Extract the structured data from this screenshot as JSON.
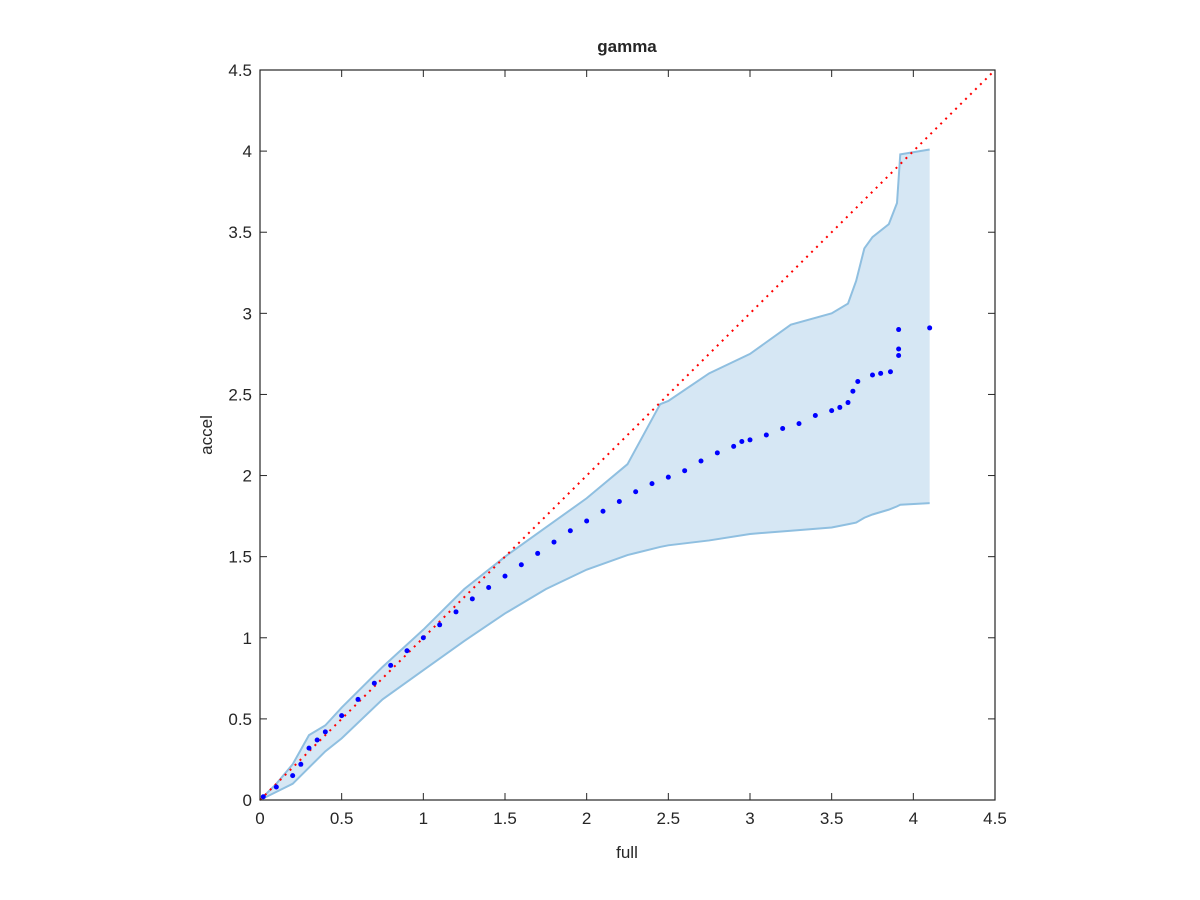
{
  "chart_data": {
    "type": "scatter",
    "title": "gamma",
    "xlabel": "full",
    "ylabel": "accel",
    "xlim": [
      0,
      4.5
    ],
    "ylim": [
      0,
      4.5
    ],
    "xticks": [
      0,
      0.5,
      1,
      1.5,
      2,
      2.5,
      3,
      3.5,
      4,
      4.5
    ],
    "yticks": [
      0,
      0.5,
      1,
      1.5,
      2,
      2.5,
      3,
      3.5,
      4,
      4.5
    ],
    "points": {
      "color": "#0000ff",
      "x": [
        0.02,
        0.1,
        0.2,
        0.25,
        0.3,
        0.35,
        0.4,
        0.5,
        0.6,
        0.7,
        0.8,
        0.9,
        1.0,
        1.1,
        1.2,
        1.3,
        1.4,
        1.5,
        1.6,
        1.7,
        1.8,
        1.9,
        2.0,
        2.1,
        2.2,
        2.3,
        2.4,
        2.5,
        2.6,
        2.7,
        2.8,
        2.9,
        2.95,
        3.0,
        3.1,
        3.2,
        3.3,
        3.4,
        3.5,
        3.55,
        3.6,
        3.63,
        3.66,
        3.75,
        3.8,
        3.86,
        3.91,
        3.91,
        3.91,
        4.1
      ],
      "values": [
        0.02,
        0.08,
        0.15,
        0.22,
        0.32,
        0.37,
        0.42,
        0.52,
        0.62,
        0.72,
        0.83,
        0.92,
        1.0,
        1.08,
        1.16,
        1.24,
        1.31,
        1.38,
        1.45,
        1.52,
        1.59,
        1.66,
        1.72,
        1.78,
        1.84,
        1.9,
        1.95,
        1.99,
        2.03,
        2.09,
        2.14,
        2.18,
        2.21,
        2.22,
        2.25,
        2.29,
        2.32,
        2.37,
        2.4,
        2.42,
        2.45,
        2.52,
        2.58,
        2.62,
        2.63,
        2.64,
        2.74,
        2.78,
        2.9,
        2.91
      ]
    },
    "band": {
      "color": "#d6e7f4",
      "edge_color": "#8fbfe0",
      "x": [
        0,
        0.1,
        0.2,
        0.3,
        0.4,
        0.5,
        0.75,
        1.0,
        1.25,
        1.5,
        1.75,
        2.0,
        2.25,
        2.45,
        2.5,
        2.75,
        3.0,
        3.25,
        3.5,
        3.6,
        3.65,
        3.7,
        3.75,
        3.85,
        3.9,
        3.92,
        4.1
      ],
      "upper": [
        0,
        0.1,
        0.22,
        0.4,
        0.46,
        0.57,
        0.82,
        1.05,
        1.3,
        1.5,
        1.68,
        1.86,
        2.07,
        2.44,
        2.46,
        2.63,
        2.75,
        2.93,
        3.0,
        3.06,
        3.2,
        3.4,
        3.47,
        3.55,
        3.68,
        3.98,
        4.01
      ],
      "lower": [
        0,
        0.05,
        0.1,
        0.2,
        0.3,
        0.38,
        0.62,
        0.8,
        0.98,
        1.15,
        1.3,
        1.42,
        1.51,
        1.56,
        1.57,
        1.6,
        1.64,
        1.66,
        1.68,
        1.7,
        1.71,
        1.74,
        1.76,
        1.79,
        1.81,
        1.82,
        1.83
      ]
    },
    "reference_line": {
      "color": "#ff0000",
      "x": [
        0,
        4.5
      ],
      "values": [
        0,
        4.5
      ]
    }
  }
}
